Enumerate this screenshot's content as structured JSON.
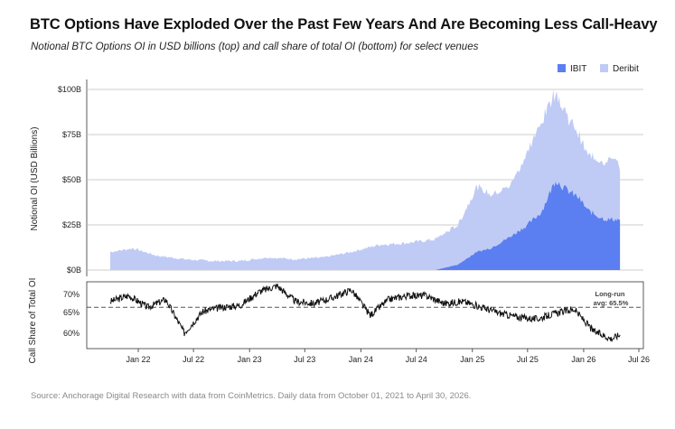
{
  "header": {
    "title": "BTC Options Have Exploded Over the Past Few Years And Are Becoming Less Call-Heavy",
    "subtitle": "Notional BTC Options OI in USD billions (top) and call share of total OI (bottom) for select venues"
  },
  "footer": {
    "source": "Source: Anchorage Digital Research with data from CoinMetrics. Daily data from October 01, 2021 to April 30, 2026."
  },
  "colors": {
    "ibit": "#5b7ef0",
    "deribit": "#bfcbf5",
    "line": "#111111",
    "grid": "#bdbdbd",
    "avg_line": "#555555"
  },
  "chart_data": [
    {
      "type": "area",
      "stacked": true,
      "ylabel": "Notional OI (USD Billions)",
      "ylim": [
        0,
        100
      ],
      "y_ticks": [
        "$0B",
        "$25B",
        "$50B",
        "$75B",
        "$100B"
      ],
      "y_tick_values": [
        0,
        25,
        50,
        75,
        100
      ],
      "grid": true,
      "legend_position": "top-right",
      "x": [
        "2021-10-01",
        "2021-12-15",
        "2022-03-01",
        "2022-06-01",
        "2022-09-01",
        "2022-12-01",
        "2023-03-01",
        "2023-06-01",
        "2023-09-01",
        "2023-12-01",
        "2024-03-01",
        "2024-06-01",
        "2024-09-01",
        "2024-11-15",
        "2025-01-15",
        "2025-03-01",
        "2025-05-01",
        "2025-07-01",
        "2025-08-15",
        "2025-10-01",
        "2025-11-01",
        "2025-12-15",
        "2026-01-15",
        "2026-02-15",
        "2026-03-15",
        "2026-04-15",
        "2026-04-30"
      ],
      "series": [
        {
          "name": "IBIT",
          "values": [
            0,
            0,
            0,
            0,
            0,
            0,
            0,
            0,
            0,
            0,
            0,
            0,
            0,
            3,
            10,
            12,
            18,
            25,
            32,
            50,
            45,
            40,
            33,
            30,
            28,
            28,
            28
          ]
        },
        {
          "name": "Deribit",
          "values": [
            10,
            12,
            8,
            6,
            5,
            5,
            7,
            6,
            7,
            10,
            14,
            15,
            17,
            22,
            36,
            30,
            28,
            40,
            50,
            50,
            42,
            35,
            30,
            32,
            32,
            35,
            27
          ]
        }
      ]
    },
    {
      "type": "line",
      "ylabel": "Call Share of Total OI",
      "ylim": [
        55,
        72
      ],
      "y_ticks": [
        "60%",
        "65%",
        "70%"
      ],
      "y_tick_values": [
        60,
        65,
        70
      ],
      "x_ticks": [
        "Jan 22",
        "Jul 22",
        "Jan 23",
        "Jul 23",
        "Jan 24",
        "Jul 24",
        "Jan 25",
        "Jul 25",
        "Jan 26",
        "Jul 26"
      ],
      "annotation": "Long-run\navg: 65.5%",
      "average": 65.5,
      "x": [
        "2021-10-01",
        "2021-12-01",
        "2022-02-01",
        "2022-04-01",
        "2022-06-01",
        "2022-08-01",
        "2022-10-01",
        "2022-12-01",
        "2023-02-01",
        "2023-04-01",
        "2023-06-01",
        "2023-08-01",
        "2023-10-01",
        "2023-12-01",
        "2024-02-01",
        "2024-04-01",
        "2024-06-01",
        "2024-08-01",
        "2024-10-01",
        "2024-12-01",
        "2025-02-01",
        "2025-04-01",
        "2025-06-01",
        "2025-08-01",
        "2025-10-01",
        "2025-12-01",
        "2026-02-01",
        "2026-04-01",
        "2026-04-30"
      ],
      "series": [
        {
          "name": "Call share",
          "values": [
            67.0,
            68.5,
            65.5,
            67.5,
            59.0,
            64.5,
            65.5,
            66.0,
            69.5,
            71.0,
            67.0,
            66.5,
            68.0,
            70.0,
            63.5,
            67.5,
            68.5,
            68.5,
            66.5,
            67.0,
            65.5,
            64.0,
            63.0,
            62.5,
            64.0,
            65.0,
            59.5,
            57.5,
            58.5
          ]
        }
      ]
    }
  ]
}
